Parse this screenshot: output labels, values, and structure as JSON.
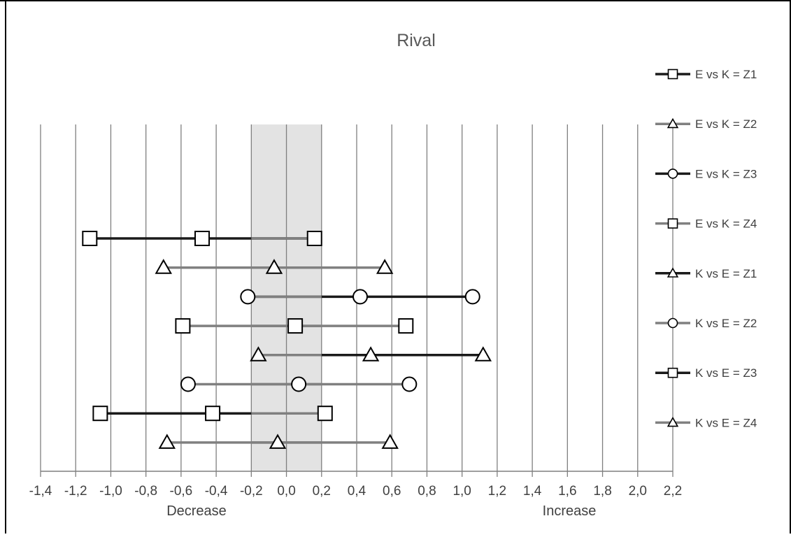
{
  "chart_data": {
    "type": "dumbbell",
    "title": "Rival",
    "xlim": [
      -1.4,
      2.2
    ],
    "x_ticks": [
      -1.4,
      -1.2,
      -1.0,
      -0.8,
      -0.6,
      -0.4,
      -0.2,
      0.0,
      0.2,
      0.4,
      0.6,
      0.8,
      1.0,
      1.2,
      1.4,
      1.6,
      1.8,
      2.0,
      2.2
    ],
    "x_tick_labels": [
      "-1,4",
      "-1,2",
      "-1,0",
      "-0,8",
      "-0,6",
      "-0,4",
      "-0,2",
      "0,0",
      "0,2",
      "0,4",
      "0,6",
      "0,8",
      "1,0",
      "1,2",
      "1,4",
      "1,6",
      "1,8",
      "2,0",
      "2,2"
    ],
    "x_annotations": {
      "left": "Decrease",
      "right": "Increase"
    },
    "shaded_region": [
      -0.2,
      0.2
    ],
    "grid": true,
    "legend_position": "right",
    "colors": {
      "dark": "#1a1a1a",
      "grey": "#808080",
      "band": "#e3e3e3",
      "gridline": "#7f7f7f"
    },
    "series": [
      {
        "name": "E vs K = Z1",
        "marker": "square",
        "color": "dark",
        "low": -1.12,
        "mid": -0.48,
        "high": 0.16
      },
      {
        "name": "E vs K = Z2",
        "marker": "triangle",
        "color": "grey",
        "low": -0.7,
        "mid": -0.07,
        "high": 0.56
      },
      {
        "name": "E vs K = Z3",
        "marker": "circle",
        "color": "dark",
        "low": -0.22,
        "mid": 0.42,
        "high": 1.06
      },
      {
        "name": "E vs K = Z4",
        "marker": "square",
        "color": "grey",
        "low": -0.59,
        "mid": 0.05,
        "high": 0.68
      },
      {
        "name": "K vs E = Z1",
        "marker": "triangle",
        "color": "dark",
        "low": -0.16,
        "mid": 0.48,
        "high": 1.12
      },
      {
        "name": "K vs E = Z2",
        "marker": "circle",
        "color": "grey",
        "low": -0.56,
        "mid": 0.07,
        "high": 0.7
      },
      {
        "name": "K vs E = Z3",
        "marker": "square",
        "color": "dark",
        "low": -1.06,
        "mid": -0.42,
        "high": 0.22
      },
      {
        "name": "K vs E = Z4",
        "marker": "triangle",
        "color": "grey",
        "low": -0.68,
        "mid": -0.05,
        "high": 0.59
      }
    ]
  }
}
